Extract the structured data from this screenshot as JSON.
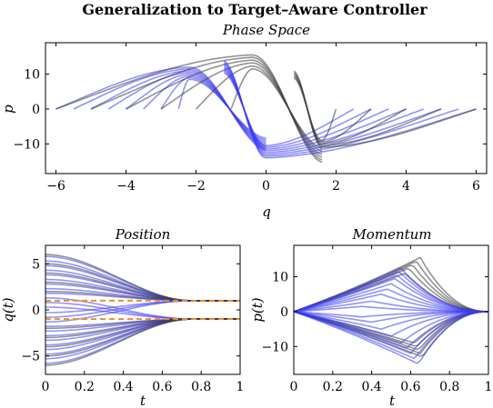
{
  "title": "Generalization to Target–Aware Controller",
  "colors": {
    "blue": "#3a3af0",
    "gray": "#3a3a3a",
    "orange": "#f28c28",
    "axis": "#000000"
  },
  "chart_data": [
    {
      "id": "phase",
      "type": "line",
      "subtitle": "Phase Space",
      "xlabel": "q",
      "ylabel": "p",
      "xlim": [
        -6.3,
        6.3
      ],
      "ylim": [
        -18.5,
        19
      ],
      "xticks": [
        -6,
        -4,
        -2,
        0,
        2,
        4,
        6
      ],
      "xtick_labels": [
        "−6",
        "−4",
        "−2",
        "0",
        "2",
        "4",
        "6"
      ],
      "yticks": [
        -10,
        0,
        10
      ],
      "ytick_labels": [
        "−10",
        "0",
        "10"
      ],
      "series": [
        {
          "color": "blue",
          "q0": [
            -6.0,
            -5.5,
            -5.0,
            -4.5,
            -4.0,
            -3.5,
            -3.0,
            -2.5
          ],
          "pmax": [
            12.0,
            11.5,
            11.0,
            10.5,
            10.0,
            9.5,
            9.0,
            8.5
          ],
          "qpeak": -2.2,
          "qend": 0.0
        },
        {
          "color": "gray",
          "q0": [
            -6.0,
            -5.0,
            -4.0,
            -3.0,
            -2.0,
            -1.0
          ],
          "pmax": [
            15.5,
            14.8,
            14.0,
            13.2,
            12.3,
            11.5
          ],
          "qpeak": -0.4,
          "qend": 1.6
        },
        {
          "color": "blue",
          "q0": [
            6.0,
            5.5,
            5.0,
            4.5,
            4.0,
            3.5,
            3.0,
            2.5
          ],
          "pmax": [
            -14.0,
            -13.5,
            -13.0,
            -12.5,
            -12.0,
            -11.5,
            -11.0,
            -10.5
          ],
          "qpeak": 0.0,
          "qend": -1.2
        },
        {
          "color": "gray",
          "q0": [
            6.0,
            5.0,
            4.0,
            3.0,
            2.0
          ],
          "pmax": [
            -11.0,
            -10.5,
            -10.0,
            -9.5,
            -9.0
          ],
          "qpeak": 1.6,
          "qend": 0.8
        }
      ]
    },
    {
      "id": "position",
      "type": "line",
      "subtitle": "Position",
      "xlabel": "t",
      "ylabel": "q(t)",
      "xlim": [
        0,
        1
      ],
      "ylim": [
        -7,
        7
      ],
      "xticks": [
        0,
        0.2,
        0.4,
        0.6,
        0.8,
        1
      ],
      "xtick_labels": [
        "0",
        "0.2",
        "0.4",
        "0.6",
        "0.8",
        "1"
      ],
      "yticks": [
        -5,
        0,
        5
      ],
      "ytick_labels": [
        "−5",
        "0",
        "5"
      ],
      "targets": [
        1,
        -1
      ],
      "series": [
        {
          "color": "blue",
          "q0": [
            5.8,
            5.3,
            4.8,
            4.3,
            3.8,
            3.3,
            2.8,
            2.3,
            1.8,
            1.3,
            0.8,
            0.3,
            -0.3,
            -0.8,
            -1.3,
            -1.8,
            -2.3,
            -2.8,
            -3.3,
            -3.8,
            -4.3,
            -4.8,
            -5.3,
            -5.8
          ]
        },
        {
          "color": "gray",
          "q0": [
            6.0,
            5.0,
            4.0,
            3.0,
            2.0,
            -2.0,
            -3.0,
            -4.0,
            -5.0,
            -6.0
          ]
        }
      ]
    },
    {
      "id": "momentum",
      "type": "line",
      "subtitle": "Momentum",
      "xlabel": "t",
      "ylabel": "p(t)",
      "xlim": [
        0,
        1
      ],
      "ylim": [
        -18,
        19
      ],
      "xticks": [
        0,
        0.2,
        0.4,
        0.6,
        0.8,
        1
      ],
      "xtick_labels": [
        "0",
        "0.2",
        "0.4",
        "0.6",
        "0.8",
        "1"
      ],
      "yticks": [
        -10,
        0,
        10
      ],
      "ytick_labels": [
        "−10",
        "0",
        "10"
      ],
      "series": [
        {
          "color": "gray",
          "peak": [
            15.5,
            14.5,
            13.5,
            12.5,
            11.0,
            -9.0,
            -10.0,
            -11.0,
            -12.0,
            -13.0
          ],
          "tpeak": [
            0.65,
            0.63,
            0.61,
            0.59,
            0.57,
            0.62,
            0.63,
            0.64,
            0.65,
            0.66
          ]
        },
        {
          "color": "blue",
          "peak": [
            12.5,
            11.5,
            10.5,
            9.5,
            8.0,
            6.5,
            5.0,
            3.0,
            1.5,
            -1.5,
            -3.0,
            -5.0,
            -7.0,
            -9.0,
            -10.5,
            -12.0,
            -13.5,
            -15.0
          ],
          "tpeak": [
            0.55,
            0.54,
            0.53,
            0.52,
            0.5,
            0.48,
            0.45,
            0.4,
            0.35,
            0.35,
            0.4,
            0.45,
            0.5,
            0.55,
            0.58,
            0.6,
            0.62,
            0.64
          ]
        }
      ]
    }
  ]
}
